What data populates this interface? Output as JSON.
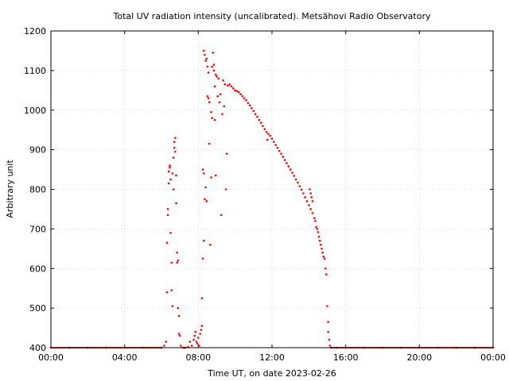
{
  "chart_data": {
    "type": "scatter",
    "title": "Total UV radiation intensity (uncalibrated). Metsähovi Radio Observatory",
    "xlabel": "Time UT, on date 2023-02-26",
    "ylabel": "Arbitrary unit",
    "xlim": [
      0,
      24
    ],
    "ylim": [
      400,
      1200
    ],
    "xticks": [
      {
        "value": 0,
        "label": "00:00"
      },
      {
        "value": 4,
        "label": "04:00"
      },
      {
        "value": 8,
        "label": "08:00"
      },
      {
        "value": 12,
        "label": "12:00"
      },
      {
        "value": 16,
        "label": "16:00"
      },
      {
        "value": 20,
        "label": "20:00"
      },
      {
        "value": 24,
        "label": "00:00"
      }
    ],
    "yticks": [
      {
        "value": 400,
        "label": "400"
      },
      {
        "value": 500,
        "label": "500"
      },
      {
        "value": 600,
        "label": "600"
      },
      {
        "value": 700,
        "label": "700"
      },
      {
        "value": 800,
        "label": "800"
      },
      {
        "value": 900,
        "label": "900"
      },
      {
        "value": 1000,
        "label": "1000"
      },
      {
        "value": 1100,
        "label": "1100"
      },
      {
        "value": 1200,
        "label": "1200"
      }
    ],
    "grid": true,
    "marker_color": "#ff0000",
    "series": [
      {
        "points": [
          [
            0.0,
            400
          ],
          [
            1.0,
            400
          ],
          [
            2.0,
            400
          ],
          [
            3.0,
            400
          ],
          [
            4.0,
            400
          ],
          [
            5.0,
            400
          ],
          [
            6.0,
            400
          ],
          [
            6.15,
            405
          ],
          [
            6.25,
            415
          ],
          [
            6.3,
            540
          ],
          [
            6.3,
            665
          ],
          [
            6.35,
            735
          ],
          [
            6.35,
            750
          ],
          [
            6.4,
            815
          ],
          [
            6.4,
            845
          ],
          [
            6.45,
            855
          ],
          [
            6.45,
            860
          ],
          [
            6.5,
            690
          ],
          [
            6.5,
            825
          ],
          [
            6.55,
            615
          ],
          [
            6.55,
            545
          ],
          [
            6.6,
            505
          ],
          [
            6.6,
            840
          ],
          [
            6.65,
            800
          ],
          [
            6.65,
            880
          ],
          [
            6.7,
            905
          ],
          [
            6.7,
            920
          ],
          [
            6.75,
            930
          ],
          [
            6.75,
            895
          ],
          [
            6.8,
            835
          ],
          [
            6.8,
            765
          ],
          [
            6.85,
            640
          ],
          [
            6.85,
            615
          ],
          [
            6.9,
            620
          ],
          [
            6.9,
            500
          ],
          [
            6.95,
            480
          ],
          [
            6.95,
            435
          ],
          [
            7.0,
            430
          ],
          [
            7.05,
            405
          ],
          [
            7.15,
            400
          ],
          [
            7.3,
            400
          ],
          [
            7.45,
            402
          ],
          [
            7.55,
            415
          ],
          [
            7.65,
            405
          ],
          [
            7.75,
            420
          ],
          [
            7.8,
            430
          ],
          [
            7.85,
            440
          ],
          [
            7.9,
            415
          ],
          [
            7.95,
            410
          ],
          [
            8.0,
            425
          ],
          [
            8.05,
            405
          ],
          [
            8.1,
            435
          ],
          [
            8.15,
            445
          ],
          [
            8.2,
            455
          ],
          [
            8.2,
            525
          ],
          [
            8.25,
            625
          ],
          [
            8.25,
            850
          ],
          [
            8.3,
            670
          ],
          [
            8.3,
            840
          ],
          [
            8.35,
            775
          ],
          [
            8.4,
            805
          ],
          [
            8.45,
            770
          ],
          [
            8.3,
            1150
          ],
          [
            8.35,
            1140
          ],
          [
            8.4,
            1125
          ],
          [
            8.45,
            1130
          ],
          [
            8.5,
            1110
          ],
          [
            8.55,
            1095
          ],
          [
            8.5,
            1035
          ],
          [
            8.55,
            1030
          ],
          [
            8.6,
            915
          ],
          [
            8.6,
            1020
          ],
          [
            8.65,
            660
          ],
          [
            8.7,
            830
          ],
          [
            8.7,
            995
          ],
          [
            8.75,
            980
          ],
          [
            8.75,
            1110
          ],
          [
            8.8,
            1145
          ],
          [
            8.85,
            1100
          ],
          [
            8.85,
            1115
          ],
          [
            8.9,
            975
          ],
          [
            8.9,
            1060
          ],
          [
            8.95,
            835
          ],
          [
            8.95,
            1090
          ],
          [
            9.0,
            1085
          ],
          [
            9.05,
            1035
          ],
          [
            9.1,
            1080
          ],
          [
            9.15,
            1020
          ],
          [
            9.2,
            1040
          ],
          [
            9.25,
            735
          ],
          [
            9.3,
            990
          ],
          [
            9.35,
            1075
          ],
          [
            9.4,
            1010
          ],
          [
            9.45,
            1065
          ],
          [
            9.5,
            800
          ],
          [
            9.55,
            890
          ],
          [
            9.6,
            1062
          ],
          [
            9.7,
            1065
          ],
          [
            9.8,
            1060
          ],
          [
            9.9,
            1055
          ],
          [
            10.0,
            1050
          ],
          [
            10.1,
            1048
          ],
          [
            10.2,
            1045
          ],
          [
            10.3,
            1040
          ],
          [
            10.4,
            1035
          ],
          [
            10.5,
            1030
          ],
          [
            10.6,
            1025
          ],
          [
            10.7,
            1018
          ],
          [
            10.8,
            1012
          ],
          [
            10.9,
            1005
          ],
          [
            11.0,
            998
          ],
          [
            11.1,
            990
          ],
          [
            11.2,
            983
          ],
          [
            11.3,
            975
          ],
          [
            11.4,
            968
          ],
          [
            11.5,
            960
          ],
          [
            11.6,
            952
          ],
          [
            11.7,
            945
          ],
          [
            11.75,
            925
          ],
          [
            11.8,
            940
          ],
          [
            11.9,
            935
          ],
          [
            12.0,
            928
          ],
          [
            12.1,
            920
          ],
          [
            12.2,
            912
          ],
          [
            12.3,
            905
          ],
          [
            12.4,
            897
          ],
          [
            12.5,
            890
          ],
          [
            12.6,
            882
          ],
          [
            12.7,
            874
          ],
          [
            12.8,
            866
          ],
          [
            12.9,
            858
          ],
          [
            13.0,
            850
          ],
          [
            13.1,
            842
          ],
          [
            13.2,
            834
          ],
          [
            13.3,
            825
          ],
          [
            13.4,
            817
          ],
          [
            13.5,
            808
          ],
          [
            13.6,
            799
          ],
          [
            13.7,
            790
          ],
          [
            13.8,
            780
          ],
          [
            13.9,
            770
          ],
          [
            14.0,
            760
          ],
          [
            14.1,
            750
          ],
          [
            14.2,
            740
          ],
          [
            14.3,
            727
          ],
          [
            14.35,
            720
          ],
          [
            14.4,
            705
          ],
          [
            14.45,
            700
          ],
          [
            14.5,
            692
          ],
          [
            14.55,
            680
          ],
          [
            14.6,
            670
          ],
          [
            14.65,
            660
          ],
          [
            14.7,
            650
          ],
          [
            14.75,
            640
          ],
          [
            14.8,
            630
          ],
          [
            14.85,
            625
          ],
          [
            14.9,
            600
          ],
          [
            14.95,
            585
          ],
          [
            14.1,
            790
          ],
          [
            14.15,
            780
          ],
          [
            14.2,
            770
          ],
          [
            14.05,
            800
          ],
          [
            15.0,
            505
          ],
          [
            15.05,
            465
          ],
          [
            15.05,
            440
          ],
          [
            15.1,
            420
          ],
          [
            15.15,
            405
          ],
          [
            15.2,
            400
          ],
          [
            15.5,
            400
          ],
          [
            16.0,
            400
          ],
          [
            17.0,
            400
          ],
          [
            18.0,
            400
          ],
          [
            19.0,
            400
          ],
          [
            20.0,
            400
          ],
          [
            21.0,
            400
          ],
          [
            22.0,
            400
          ],
          [
            23.0,
            400
          ],
          [
            24.0,
            400
          ]
        ]
      }
    ]
  }
}
